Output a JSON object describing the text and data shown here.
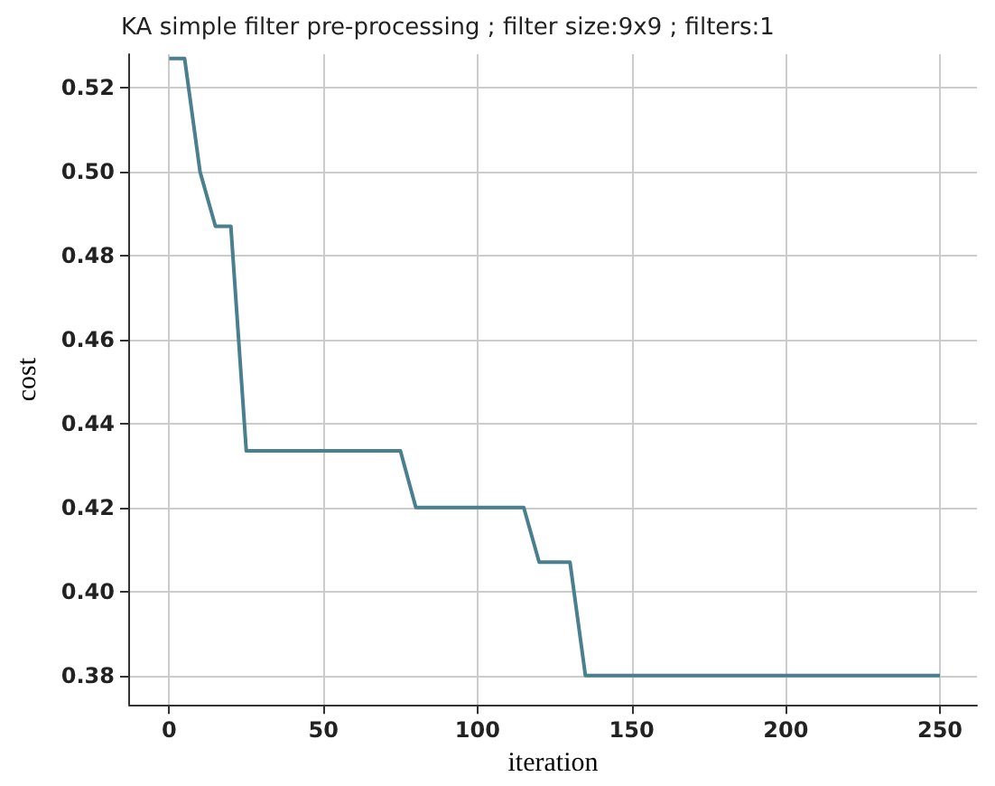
{
  "chart_data": {
    "type": "line",
    "title": "KA simple filter pre-processing ; filter size:9x9 ; filters:1",
    "xlabel": "iteration",
    "ylabel": "cost",
    "x": [
      0,
      5,
      10,
      15,
      20,
      25,
      75,
      80,
      115,
      120,
      130,
      135,
      250
    ],
    "series": [
      {
        "color": "#4a7f8f",
        "values": [
          0.527,
          0.527,
          0.5,
          0.487,
          0.487,
          0.4335,
          0.4335,
          0.42,
          0.42,
          0.407,
          0.407,
          0.38,
          0.38
        ]
      }
    ],
    "xlim": [
      -13,
      262
    ],
    "xticks": [
      0,
      50,
      100,
      150,
      200,
      250
    ],
    "ylim": [
      0.373,
      0.528
    ],
    "yticks": [
      {
        "value": 0.38,
        "label": "0.38"
      },
      {
        "value": 0.4,
        "label": "0.40"
      },
      {
        "value": 0.42,
        "label": "0.42"
      },
      {
        "value": 0.44,
        "label": "0.44"
      },
      {
        "value": 0.46,
        "label": "0.46"
      },
      {
        "value": 0.48,
        "label": "0.48"
      },
      {
        "value": 0.5,
        "label": "0.50"
      },
      {
        "value": 0.52,
        "label": "0.52"
      }
    ],
    "grid": true,
    "marker": "none",
    "line_style": "solid"
  }
}
